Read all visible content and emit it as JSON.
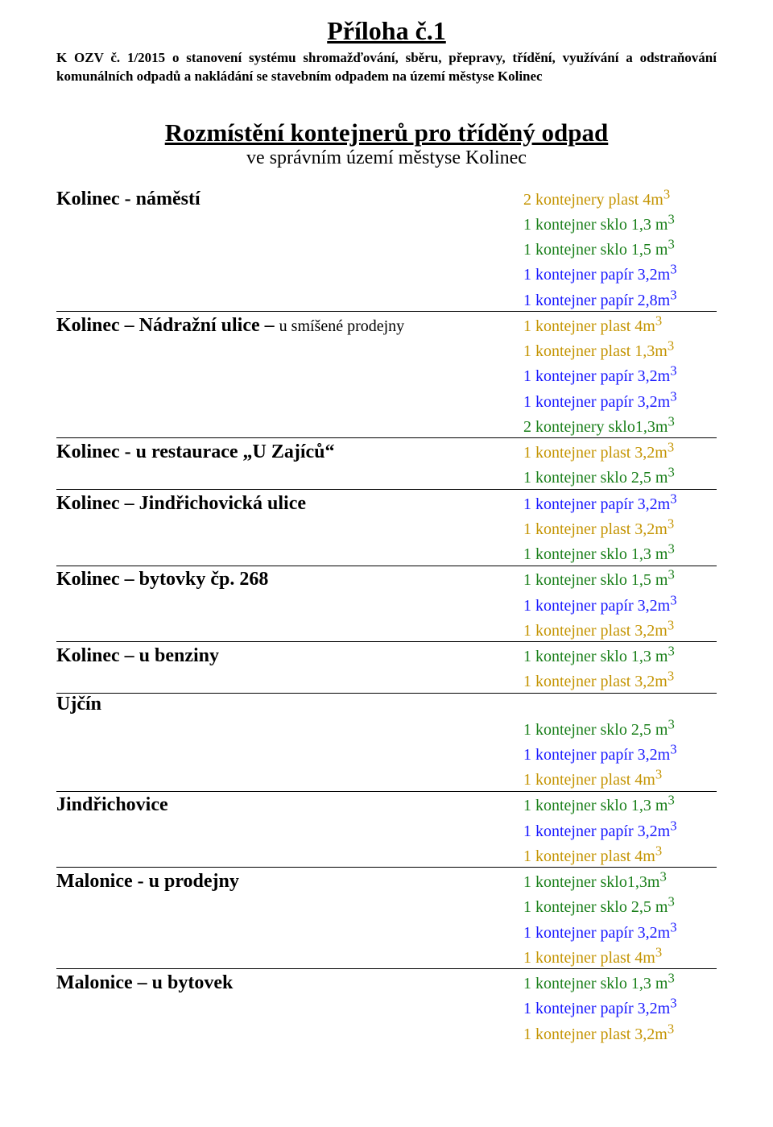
{
  "title": "Příloha č.1",
  "preamble": "K OZV č. 1/2015 o stanovení systému shromažďování, sběru, přepravy, třídění, využívání a odstraňování komunálních odpadů a nakládání se stavebním odpadem na území městyse Kolinec",
  "mainHeading": "Rozmístění kontejnerů pro tříděný odpad",
  "subHeading": "ve správním území městyse Kolinec",
  "colors": {
    "text": "#000000",
    "plast": "#c49402",
    "sklo": "#1a7f1a",
    "papir": "#1818ff",
    "bg": "#ffffff"
  },
  "fontSizes": {
    "title": 32,
    "heading": 31,
    "sub": 24,
    "loc": 24,
    "item": 20
  },
  "locations": [
    {
      "name": "Kolinec - náměstí",
      "sub": "",
      "items": [
        {
          "text": "2 kontejnery plast 4m",
          "sup": "3",
          "color": "plast"
        },
        {
          "text": "1 kontejner sklo 1,3 m",
          "sup": "3",
          "color": "sklo"
        },
        {
          "text": "1 kontejner sklo 1,5 m",
          "sup": "3",
          "color": "sklo"
        },
        {
          "text": "1 kontejner papír 3,2m",
          "sup": "3",
          "color": "papir"
        },
        {
          "text": "1 kontejner papír 2,8m",
          "sup": "3",
          "color": "papir"
        }
      ]
    },
    {
      "name": "Kolinec – Nádražní ulice – ",
      "sub": "u smíšené prodejny",
      "items": [
        {
          "text": "1 kontejner plast 4m",
          "sup": "3",
          "color": "plast"
        },
        {
          "text": "1 kontejner plast 1,3m",
          "sup": "3",
          "color": "plast"
        },
        {
          "text": "1 kontejner papír 3,2m",
          "sup": "3",
          "color": "papir"
        },
        {
          "text": "1 kontejner papír 3,2m",
          "sup": "3",
          "color": "papir"
        },
        {
          "text": "2 kontejnery sklo1,3m",
          "sup": "3",
          "color": "sklo"
        }
      ]
    },
    {
      "name": "Kolinec -  u restaurace „U Zajíců“",
      "sub": "",
      "items": [
        {
          "text": "1 kontejner plast 3,2m",
          "sup": "3",
          "color": "plast"
        },
        {
          "text": "1 kontejner sklo 2,5 m",
          "sup": "3",
          "color": "sklo"
        }
      ]
    },
    {
      "name": "Kolinec – Jindřichovická ulice",
      "sub": "",
      "items": [
        {
          "text": "1 kontejner papír 3,2m",
          "sup": "3",
          "color": "papir"
        },
        {
          "text": "1 kontejner plast 3,2m",
          "sup": "3",
          "color": "plast"
        },
        {
          "text": "1 kontejner sklo 1,3 m",
          "sup": "3",
          "color": "sklo"
        }
      ]
    },
    {
      "name": "Kolinec – bytovky čp. 268",
      "sub": "",
      "items": [
        {
          "text": "1 kontejner sklo 1,5 m",
          "sup": "3",
          "color": "sklo"
        },
        {
          "text": "1 kontejner papír 3,2m",
          "sup": "3",
          "color": "papir"
        },
        {
          "text": "1 kontejner plast 3,2m",
          "sup": "3",
          "color": "plast"
        }
      ]
    },
    {
      "name": "Kolinec – u benziny",
      "sub": "",
      "items": [
        {
          "text": "1 kontejner sklo 1,3 m",
          "sup": "3",
          "color": "sklo"
        },
        {
          "text": "1 kontejner plast 3,2m",
          "sup": "3",
          "color": "plast"
        }
      ]
    },
    {
      "name": "Ujčín",
      "sub": "",
      "firstBlank": true,
      "items": [
        {
          "text": "1 kontejner sklo 2,5 m",
          "sup": "3",
          "color": "sklo"
        },
        {
          "text": "1 kontejner papír 3,2m",
          "sup": "3",
          "color": "papir"
        },
        {
          "text": "1 kontejner plast 4m",
          "sup": "3",
          "color": "plast"
        }
      ]
    },
    {
      "name": "Jindřichovice",
      "sub": "",
      "items": [
        {
          "text": "1 kontejner sklo 1,3 m",
          "sup": "3",
          "color": "sklo"
        },
        {
          "text": "1 kontejner papír 3,2m",
          "sup": "3",
          "color": "papir"
        },
        {
          "text": "1 kontejner plast  4m",
          "sup": "3",
          "color": "plast"
        }
      ]
    },
    {
      "name": "Malonice - u prodejny",
      "sub": "",
      "items": [
        {
          "text": "1 kontejner sklo1,3m",
          "sup": "3",
          "color": "sklo"
        },
        {
          "text": "1 kontejner sklo 2,5 m",
          "sup": "3",
          "color": "sklo"
        },
        {
          "text": "1 kontejner papír 3,2m",
          "sup": "3",
          "color": "papir"
        },
        {
          "text": "1 kontejner plast  4m",
          "sup": "3",
          "color": "plast"
        }
      ]
    },
    {
      "name": "Malonice – u bytovek",
      "sub": "",
      "noBorder": true,
      "items": [
        {
          "text": "1 kontejner sklo 1,3 m",
          "sup": "3",
          "color": "sklo"
        },
        {
          "text": "1 kontejner papír 3,2m",
          "sup": "3",
          "color": "papir"
        },
        {
          "text": "1 kontejner plast 3,2m",
          "sup": "3",
          "color": "plast"
        }
      ]
    }
  ]
}
